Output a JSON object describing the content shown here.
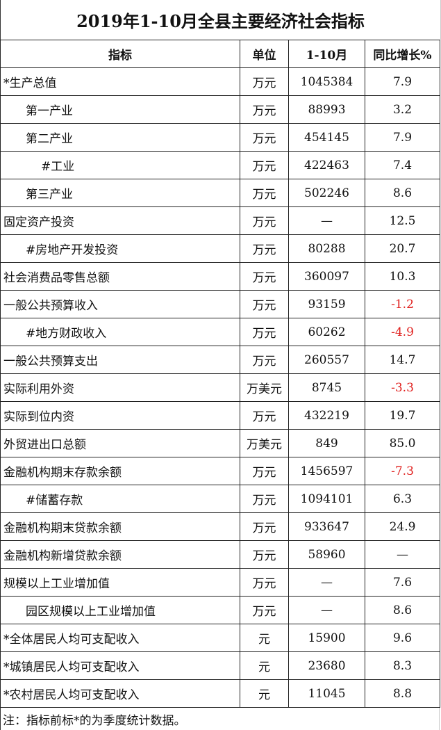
{
  "title": "2019年1-10月全县主要经济社会指标",
  "headers": [
    "指标",
    "单位",
    "1-10月",
    "同比增长%"
  ],
  "negative_color": "#e0201e",
  "rows": [
    {
      "name": "*生产总值",
      "unit": "万元",
      "value": "1045384",
      "growth": "7.9",
      "indent": 0,
      "negative": false
    },
    {
      "name": "第一产业",
      "unit": "万元",
      "value": "88993",
      "growth": "3.2",
      "indent": 1,
      "negative": false
    },
    {
      "name": "第二产业",
      "unit": "万元",
      "value": "454145",
      "growth": "7.9",
      "indent": 1,
      "negative": false
    },
    {
      "name": "#工业",
      "unit": "万元",
      "value": "422463",
      "growth": "7.4",
      "indent": 2,
      "negative": false
    },
    {
      "name": "第三产业",
      "unit": "万元",
      "value": "502246",
      "growth": "8.6",
      "indent": 1,
      "negative": false
    },
    {
      "name": "固定资产投资",
      "unit": "万元",
      "value": "—",
      "growth": "12.5",
      "indent": 0,
      "negative": false
    },
    {
      "name": "#房地产开发投资",
      "unit": "万元",
      "value": "80288",
      "growth": "20.7",
      "indent": 1,
      "negative": false
    },
    {
      "name": "社会消费品零售总额",
      "unit": "万元",
      "value": "360097",
      "growth": "10.3",
      "indent": 0,
      "negative": false
    },
    {
      "name": "一般公共预算收入",
      "unit": "万元",
      "value": "93159",
      "growth": "-1.2",
      "indent": 0,
      "negative": true
    },
    {
      "name": "#地方财政收入",
      "unit": "万元",
      "value": "60262",
      "growth": "-4.9",
      "indent": 1,
      "negative": true
    },
    {
      "name": "一般公共预算支出",
      "unit": "万元",
      "value": "260557",
      "growth": "14.7",
      "indent": 0,
      "negative": false
    },
    {
      "name": "实际利用外资",
      "unit": "万美元",
      "value": "8745",
      "growth": "-3.3",
      "indent": 0,
      "negative": true
    },
    {
      "name": "实际到位内资",
      "unit": "万元",
      "value": "432219",
      "growth": "19.7",
      "indent": 0,
      "negative": false
    },
    {
      "name": "外贸进出口总额",
      "unit": "万美元",
      "value": "849",
      "growth": "85.0",
      "indent": 0,
      "negative": false
    },
    {
      "name": "金融机构期末存款余额",
      "unit": "万元",
      "value": "1456597",
      "growth": "-7.3",
      "indent": 0,
      "negative": true
    },
    {
      "name": "#储蓄存款",
      "unit": "万元",
      "value": "1094101",
      "growth": "6.3",
      "indent": 1,
      "negative": false
    },
    {
      "name": "金融机构期末贷款余额",
      "unit": "万元",
      "value": "933647",
      "growth": "24.9",
      "indent": 0,
      "negative": false
    },
    {
      "name": "金融机构新增贷款余额",
      "unit": "万元",
      "value": "58960",
      "growth": "—",
      "indent": 0,
      "negative": false
    },
    {
      "name": "规模以上工业增加值",
      "unit": "万元",
      "value": "—",
      "growth": "7.6",
      "indent": 0,
      "negative": false
    },
    {
      "name": "园区规模以上工业增加值",
      "unit": "万元",
      "value": "—",
      "growth": "8.6",
      "indent": 1,
      "negative": false
    },
    {
      "name": "*全体居民人均可支配收入",
      "unit": "元",
      "value": "15900",
      "growth": "9.6",
      "indent": 0,
      "negative": false
    },
    {
      "name": "*城镇居民人均可支配收入",
      "unit": "元",
      "value": "23680",
      "growth": "8.3",
      "indent": 0,
      "negative": false
    },
    {
      "name": "*农村居民人均可支配收入",
      "unit": "元",
      "value": "11045",
      "growth": "8.8",
      "indent": 0,
      "negative": false
    }
  ],
  "note": "注：指标前标*的为季度统计数据。"
}
